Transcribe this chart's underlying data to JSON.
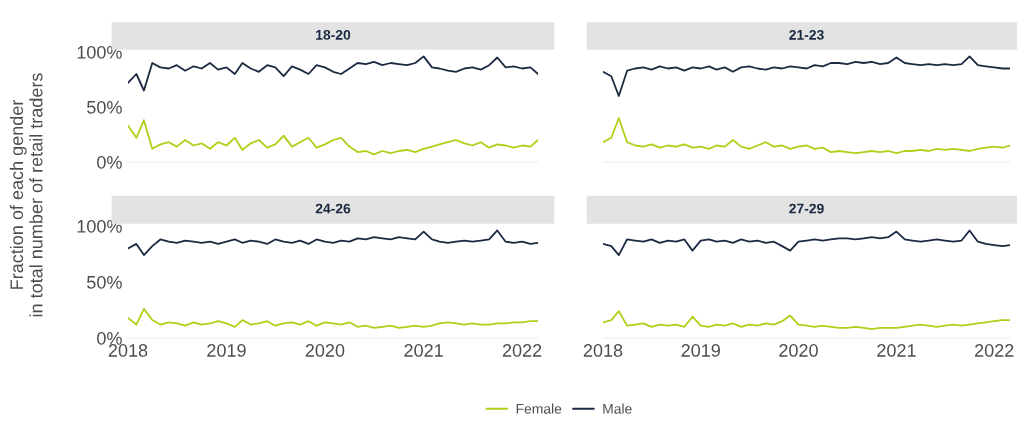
{
  "chart_data": [
    {
      "type": "line",
      "title": "18-20",
      "ylabel": "Fraction of each gender\nin total number of retail traders",
      "xlim": [
        "2018-01",
        "2022-03"
      ],
      "ylim": [
        0,
        1
      ],
      "xticks": [
        "2018",
        "2019",
        "2020",
        "2021",
        "2022"
      ],
      "yticks": [
        {
          "value": 0,
          "label": "0%"
        },
        {
          "value": 0.5,
          "label": "50%"
        },
        {
          "value": 1,
          "label": "100%"
        }
      ],
      "tick_labels": "y",
      "legend": "bottom",
      "grid": false,
      "x": [
        "2018-01",
        "2018-02",
        "2018-03",
        "2018-04",
        "2018-05",
        "2018-06",
        "2018-07",
        "2018-08",
        "2018-09",
        "2018-10",
        "2018-11",
        "2018-12",
        "2019-01",
        "2019-02",
        "2019-03",
        "2019-04",
        "2019-05",
        "2019-06",
        "2019-07",
        "2019-08",
        "2019-09",
        "2019-10",
        "2019-11",
        "2019-12",
        "2020-01",
        "2020-02",
        "2020-03",
        "2020-04",
        "2020-05",
        "2020-06",
        "2020-07",
        "2020-08",
        "2020-09",
        "2020-10",
        "2020-11",
        "2020-12",
        "2021-01",
        "2021-02",
        "2021-03",
        "2021-04",
        "2021-05",
        "2021-06",
        "2021-07",
        "2021-08",
        "2021-09",
        "2021-10",
        "2021-11",
        "2021-12",
        "2022-01",
        "2022-02",
        "2022-03"
      ],
      "series": [
        {
          "name": "Female",
          "color": "#b5cc18",
          "values": [
            0.33,
            0.22,
            0.38,
            0.12,
            0.16,
            0.18,
            0.14,
            0.2,
            0.15,
            0.17,
            0.12,
            0.18,
            0.15,
            0.22,
            0.11,
            0.17,
            0.2,
            0.13,
            0.16,
            0.24,
            0.14,
            0.18,
            0.22,
            0.13,
            0.16,
            0.2,
            0.22,
            0.14,
            0.09,
            0.1,
            0.07,
            0.1,
            0.08,
            0.1,
            0.11,
            0.09,
            0.12,
            0.14,
            0.16,
            0.18,
            0.2,
            0.17,
            0.15,
            0.18,
            0.13,
            0.16,
            0.15,
            0.13,
            0.15,
            0.14,
            0.2
          ]
        },
        {
          "name": "Male",
          "color": "#1b2a41",
          "values": [
            0.72,
            0.8,
            0.65,
            0.9,
            0.86,
            0.85,
            0.88,
            0.83,
            0.87,
            0.85,
            0.9,
            0.84,
            0.86,
            0.8,
            0.9,
            0.85,
            0.82,
            0.88,
            0.86,
            0.78,
            0.87,
            0.84,
            0.8,
            0.88,
            0.86,
            0.82,
            0.8,
            0.85,
            0.9,
            0.89,
            0.91,
            0.88,
            0.9,
            0.89,
            0.88,
            0.9,
            0.96,
            0.86,
            0.85,
            0.83,
            0.82,
            0.85,
            0.86,
            0.84,
            0.88,
            0.95,
            0.86,
            0.87,
            0.85,
            0.86,
            0.8
          ]
        }
      ]
    },
    {
      "type": "line",
      "title": "21-23",
      "xlim": [
        "2018-01",
        "2022-03"
      ],
      "ylim": [
        0,
        1
      ],
      "xticks": [
        "2018",
        "2019",
        "2020",
        "2021",
        "2022"
      ],
      "yticks": [
        {
          "value": 0,
          "label": "0%"
        },
        {
          "value": 0.5,
          "label": "50%"
        },
        {
          "value": 1,
          "label": "100%"
        }
      ],
      "tick_labels": false,
      "legend": "bottom",
      "grid": false,
      "x": [
        "2018-01",
        "2018-02",
        "2018-03",
        "2018-04",
        "2018-05",
        "2018-06",
        "2018-07",
        "2018-08",
        "2018-09",
        "2018-10",
        "2018-11",
        "2018-12",
        "2019-01",
        "2019-02",
        "2019-03",
        "2019-04",
        "2019-05",
        "2019-06",
        "2019-07",
        "2019-08",
        "2019-09",
        "2019-10",
        "2019-11",
        "2019-12",
        "2020-01",
        "2020-02",
        "2020-03",
        "2020-04",
        "2020-05",
        "2020-06",
        "2020-07",
        "2020-08",
        "2020-09",
        "2020-10",
        "2020-11",
        "2020-12",
        "2021-01",
        "2021-02",
        "2021-03",
        "2021-04",
        "2021-05",
        "2021-06",
        "2021-07",
        "2021-08",
        "2021-09",
        "2021-10",
        "2021-11",
        "2021-12",
        "2022-01",
        "2022-02",
        "2022-03"
      ],
      "series": [
        {
          "name": "Female",
          "color": "#b5cc18",
          "values": [
            0.18,
            0.22,
            0.4,
            0.18,
            0.15,
            0.14,
            0.16,
            0.13,
            0.15,
            0.14,
            0.16,
            0.13,
            0.14,
            0.12,
            0.15,
            0.14,
            0.2,
            0.14,
            0.12,
            0.15,
            0.18,
            0.14,
            0.15,
            0.12,
            0.14,
            0.15,
            0.12,
            0.13,
            0.09,
            0.1,
            0.09,
            0.08,
            0.09,
            0.1,
            0.09,
            0.1,
            0.08,
            0.1,
            0.1,
            0.11,
            0.1,
            0.12,
            0.11,
            0.12,
            0.11,
            0.1,
            0.12,
            0.13,
            0.14,
            0.13,
            0.15
          ]
        },
        {
          "name": "Male",
          "color": "#1b2a41",
          "values": [
            0.82,
            0.78,
            0.6,
            0.83,
            0.85,
            0.86,
            0.84,
            0.87,
            0.85,
            0.86,
            0.83,
            0.86,
            0.85,
            0.87,
            0.84,
            0.86,
            0.82,
            0.86,
            0.87,
            0.85,
            0.84,
            0.86,
            0.85,
            0.87,
            0.86,
            0.85,
            0.88,
            0.87,
            0.9,
            0.9,
            0.89,
            0.91,
            0.9,
            0.91,
            0.89,
            0.9,
            0.95,
            0.9,
            0.89,
            0.88,
            0.89,
            0.88,
            0.89,
            0.88,
            0.89,
            0.96,
            0.88,
            0.87,
            0.86,
            0.85,
            0.85
          ]
        }
      ]
    },
    {
      "type": "line",
      "title": "24-26",
      "xlim": [
        "2018-01",
        "2022-03"
      ],
      "ylim": [
        0,
        1
      ],
      "xticks": [
        "2018",
        "2019",
        "2020",
        "2021",
        "2022"
      ],
      "yticks": [
        {
          "value": 0,
          "label": "0%"
        },
        {
          "value": 0.5,
          "label": "50%"
        },
        {
          "value": 1,
          "label": "100%"
        }
      ],
      "legend": "bottom",
      "grid": false,
      "x": [
        "2018-01",
        "2018-02",
        "2018-03",
        "2018-04",
        "2018-05",
        "2018-06",
        "2018-07",
        "2018-08",
        "2018-09",
        "2018-10",
        "2018-11",
        "2018-12",
        "2019-01",
        "2019-02",
        "2019-03",
        "2019-04",
        "2019-05",
        "2019-06",
        "2019-07",
        "2019-08",
        "2019-09",
        "2019-10",
        "2019-11",
        "2019-12",
        "2020-01",
        "2020-02",
        "2020-03",
        "2020-04",
        "2020-05",
        "2020-06",
        "2020-07",
        "2020-08",
        "2020-09",
        "2020-10",
        "2020-11",
        "2020-12",
        "2021-01",
        "2021-02",
        "2021-03",
        "2021-04",
        "2021-05",
        "2021-06",
        "2021-07",
        "2021-08",
        "2021-09",
        "2021-10",
        "2021-11",
        "2021-12",
        "2022-01",
        "2022-02",
        "2022-03"
      ],
      "series": [
        {
          "name": "Female",
          "color": "#b5cc18",
          "values": [
            0.18,
            0.12,
            0.26,
            0.16,
            0.12,
            0.14,
            0.13,
            0.11,
            0.14,
            0.12,
            0.13,
            0.15,
            0.13,
            0.1,
            0.16,
            0.12,
            0.13,
            0.15,
            0.11,
            0.13,
            0.14,
            0.12,
            0.15,
            0.11,
            0.14,
            0.13,
            0.12,
            0.14,
            0.1,
            0.11,
            0.09,
            0.1,
            0.11,
            0.09,
            0.1,
            0.11,
            0.1,
            0.11,
            0.13,
            0.14,
            0.13,
            0.12,
            0.13,
            0.12,
            0.12,
            0.13,
            0.13,
            0.14,
            0.14,
            0.15,
            0.15
          ]
        },
        {
          "name": "Male",
          "color": "#1b2a41",
          "values": [
            0.8,
            0.84,
            0.74,
            0.82,
            0.88,
            0.86,
            0.85,
            0.87,
            0.86,
            0.85,
            0.86,
            0.84,
            0.86,
            0.88,
            0.85,
            0.87,
            0.86,
            0.84,
            0.88,
            0.86,
            0.85,
            0.87,
            0.84,
            0.88,
            0.86,
            0.85,
            0.87,
            0.86,
            0.89,
            0.88,
            0.9,
            0.89,
            0.88,
            0.9,
            0.89,
            0.88,
            0.95,
            0.88,
            0.86,
            0.85,
            0.86,
            0.87,
            0.86,
            0.87,
            0.88,
            0.96,
            0.86,
            0.85,
            0.86,
            0.84,
            0.85
          ]
        }
      ]
    },
    {
      "type": "line",
      "title": "27-29",
      "xlim": [
        "2018-01",
        "2022-03"
      ],
      "ylim": [
        0,
        1
      ],
      "xticks": [
        "2018",
        "2019",
        "2020",
        "2021",
        "2022"
      ],
      "yticks": [
        {
          "value": 0,
          "label": "0%"
        },
        {
          "value": 0.5,
          "label": "50%"
        },
        {
          "value": 1,
          "label": "100%"
        }
      ],
      "tick_labels": "x",
      "legend": "bottom",
      "grid": false,
      "x": [
        "2018-01",
        "2018-02",
        "2018-03",
        "2018-04",
        "2018-05",
        "2018-06",
        "2018-07",
        "2018-08",
        "2018-09",
        "2018-10",
        "2018-11",
        "2018-12",
        "2019-01",
        "2019-02",
        "2019-03",
        "2019-04",
        "2019-05",
        "2019-06",
        "2019-07",
        "2019-08",
        "2019-09",
        "2019-10",
        "2019-11",
        "2019-12",
        "2020-01",
        "2020-02",
        "2020-03",
        "2020-04",
        "2020-05",
        "2020-06",
        "2020-07",
        "2020-08",
        "2020-09",
        "2020-10",
        "2020-11",
        "2020-12",
        "2021-01",
        "2021-02",
        "2021-03",
        "2021-04",
        "2021-05",
        "2021-06",
        "2021-07",
        "2021-08",
        "2021-09",
        "2021-10",
        "2021-11",
        "2021-12",
        "2022-01",
        "2022-02",
        "2022-03"
      ],
      "series": [
        {
          "name": "Female",
          "color": "#b5cc18",
          "values": [
            0.14,
            0.16,
            0.24,
            0.11,
            0.12,
            0.13,
            0.1,
            0.12,
            0.11,
            0.12,
            0.1,
            0.19,
            0.11,
            0.1,
            0.12,
            0.11,
            0.13,
            0.1,
            0.12,
            0.11,
            0.13,
            0.12,
            0.15,
            0.2,
            0.12,
            0.11,
            0.1,
            0.11,
            0.1,
            0.09,
            0.09,
            0.1,
            0.09,
            0.08,
            0.09,
            0.09,
            0.09,
            0.1,
            0.11,
            0.12,
            0.11,
            0.1,
            0.11,
            0.12,
            0.11,
            0.12,
            0.13,
            0.14,
            0.15,
            0.16,
            0.16
          ]
        },
        {
          "name": "Male",
          "color": "#1b2a41",
          "values": [
            0.84,
            0.82,
            0.74,
            0.88,
            0.87,
            0.86,
            0.88,
            0.85,
            0.87,
            0.86,
            0.88,
            0.78,
            0.87,
            0.88,
            0.86,
            0.87,
            0.85,
            0.88,
            0.86,
            0.87,
            0.85,
            0.86,
            0.82,
            0.78,
            0.86,
            0.87,
            0.88,
            0.87,
            0.88,
            0.89,
            0.89,
            0.88,
            0.89,
            0.9,
            0.89,
            0.9,
            0.95,
            0.88,
            0.87,
            0.86,
            0.87,
            0.88,
            0.87,
            0.86,
            0.87,
            0.96,
            0.86,
            0.84,
            0.83,
            0.82,
            0.83
          ]
        }
      ]
    }
  ]
}
